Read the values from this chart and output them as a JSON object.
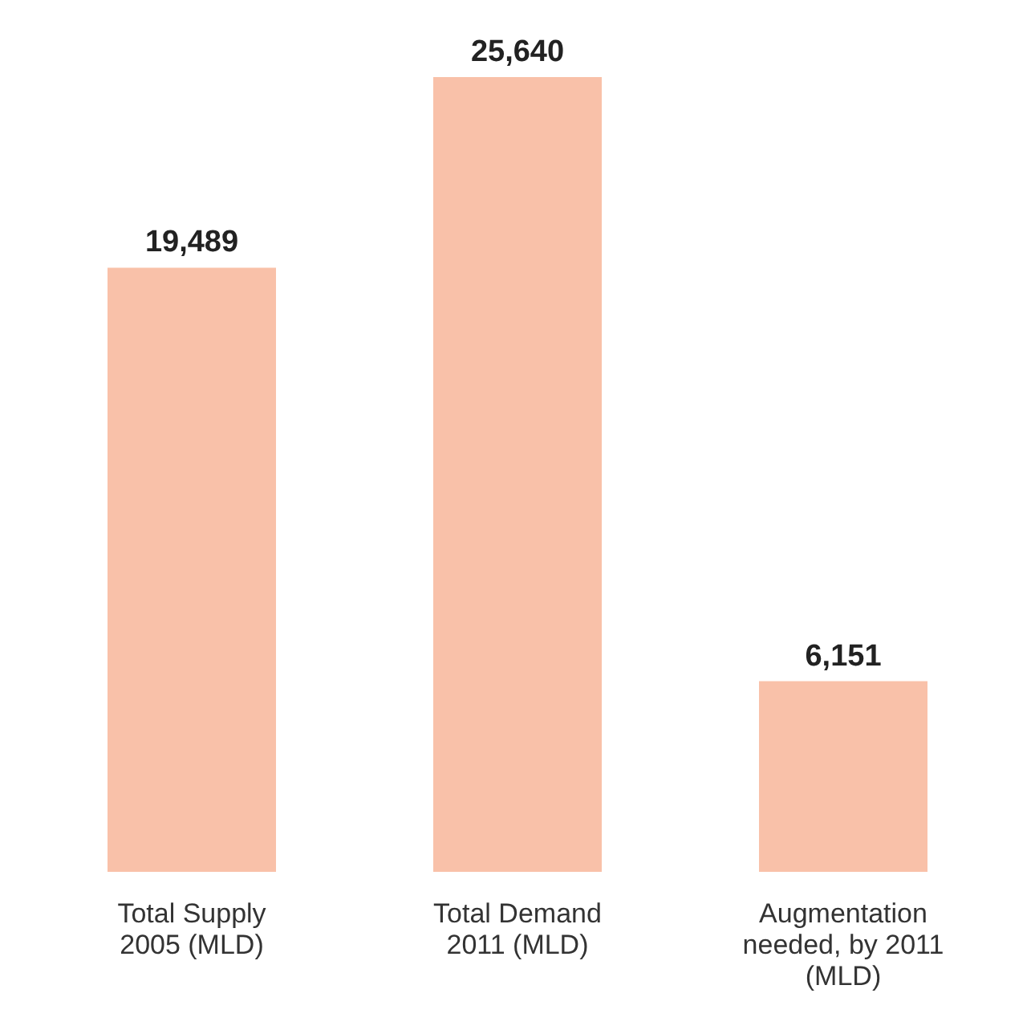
{
  "chart_data": {
    "type": "bar",
    "categories": [
      "Total Supply 2005 (MLD)",
      "Total Demand 2011 (MLD)",
      "Augmentation needed, by 2011 (MLD)"
    ],
    "values": [
      19489,
      25640,
      6151
    ],
    "value_labels": [
      "19,489",
      "25,640",
      "6,151"
    ],
    "color": "#f9c1a9",
    "grid": false,
    "legend": false
  }
}
